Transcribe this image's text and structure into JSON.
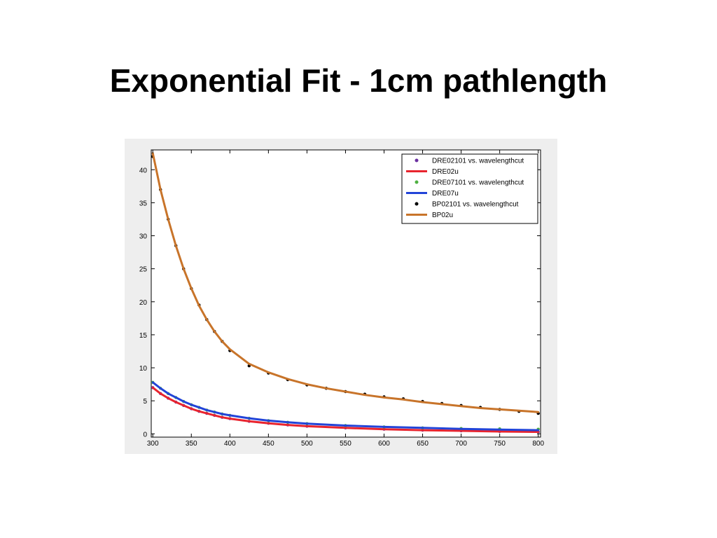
{
  "title": "Exponential Fit - 1cm pathlength",
  "colors": {
    "figure_bg": "#eeeeee",
    "axes_bg": "#ffffff",
    "DRE02101_points": "#6a2fa0",
    "DRE02u": "#e8242e",
    "DRE07101_points": "#4fb040",
    "DRE07u": "#2244d8",
    "BP02101_points": "#000000",
    "BP02u": "#c8742a"
  },
  "chart_data": {
    "type": "scatter",
    "title": "",
    "xlabel": "",
    "ylabel": "",
    "xlim": [
      298,
      803
    ],
    "ylim": [
      -0.5,
      43
    ],
    "xticks": [
      300,
      350,
      400,
      450,
      500,
      550,
      600,
      650,
      700,
      750,
      800
    ],
    "yticks": [
      0,
      5,
      10,
      15,
      20,
      25,
      30,
      35,
      40
    ],
    "legend_position": "top-right",
    "grid": false,
    "series": [
      {
        "name": "DRE02101 vs. wavelengthcut",
        "kind": "points",
        "color_key": "DRE02101_points",
        "x": [
          300,
          310,
          320,
          330,
          340,
          350,
          360,
          370,
          380,
          390,
          400,
          425,
          450,
          475,
          500,
          550,
          600,
          650,
          700,
          750,
          800
        ],
        "y": [
          7.0,
          6.1,
          5.4,
          4.8,
          4.3,
          3.8,
          3.4,
          3.1,
          2.8,
          2.5,
          2.3,
          1.9,
          1.6,
          1.35,
          1.15,
          0.9,
          0.7,
          0.55,
          0.45,
          0.35,
          0.3
        ]
      },
      {
        "name": "DRE02u",
        "kind": "line",
        "color_key": "DRE02u",
        "x": [
          300,
          310,
          320,
          330,
          340,
          350,
          360,
          370,
          380,
          390,
          400,
          425,
          450,
          475,
          500,
          550,
          600,
          650,
          700,
          750,
          800
        ],
        "y": [
          7.0,
          6.1,
          5.4,
          4.8,
          4.3,
          3.8,
          3.4,
          3.1,
          2.8,
          2.5,
          2.3,
          1.9,
          1.6,
          1.35,
          1.15,
          0.9,
          0.7,
          0.55,
          0.45,
          0.35,
          0.3
        ]
      },
      {
        "name": "DRE07101 vs. wavelengthcut",
        "kind": "points",
        "color_key": "DRE07101_points",
        "x": [
          300,
          310,
          320,
          330,
          340,
          350,
          360,
          370,
          380,
          390,
          400,
          425,
          450,
          475,
          500,
          550,
          600,
          650,
          700,
          750,
          800
        ],
        "y": [
          7.8,
          6.9,
          6.1,
          5.5,
          4.9,
          4.4,
          4.0,
          3.6,
          3.3,
          3.0,
          2.8,
          2.35,
          2.0,
          1.75,
          1.55,
          1.25,
          1.05,
          0.9,
          0.8,
          0.75,
          0.7
        ]
      },
      {
        "name": "DRE07u",
        "kind": "line",
        "color_key": "DRE07u",
        "x": [
          300,
          310,
          320,
          330,
          340,
          350,
          360,
          370,
          380,
          390,
          400,
          425,
          450,
          475,
          500,
          550,
          600,
          650,
          700,
          750,
          800
        ],
        "y": [
          7.8,
          6.9,
          6.1,
          5.5,
          4.9,
          4.4,
          4.0,
          3.6,
          3.3,
          3.0,
          2.8,
          2.35,
          2.0,
          1.75,
          1.55,
          1.25,
          1.05,
          0.9,
          0.75,
          0.65,
          0.55
        ]
      },
      {
        "name": "BP02101 vs. wavelengthcut",
        "kind": "points",
        "color_key": "BP02101_points",
        "x": [
          300,
          310,
          320,
          330,
          340,
          350,
          360,
          370,
          380,
          390,
          400,
          425,
          450,
          475,
          500,
          525,
          550,
          575,
          600,
          625,
          650,
          675,
          700,
          725,
          750,
          775,
          800
        ],
        "y": [
          42.0,
          37.0,
          32.5,
          28.5,
          25.0,
          22.0,
          19.5,
          17.3,
          15.5,
          14.0,
          12.6,
          10.3,
          9.2,
          8.2,
          7.4,
          6.9,
          6.4,
          6.0,
          5.6,
          5.3,
          4.9,
          4.6,
          4.3,
          4.0,
          3.7,
          3.4,
          3.1
        ]
      },
      {
        "name": "BP02u",
        "kind": "line",
        "color_key": "BP02u",
        "x": [
          300,
          310,
          320,
          330,
          340,
          350,
          360,
          370,
          380,
          390,
          400,
          425,
          450,
          475,
          500,
          525,
          550,
          575,
          600,
          625,
          650,
          675,
          700,
          725,
          750,
          775,
          800
        ],
        "y": [
          42.5,
          37.0,
          32.5,
          28.5,
          25.0,
          22.0,
          19.4,
          17.3,
          15.5,
          14.0,
          12.8,
          10.6,
          9.3,
          8.3,
          7.5,
          6.9,
          6.4,
          5.9,
          5.5,
          5.2,
          4.8,
          4.5,
          4.2,
          3.9,
          3.7,
          3.5,
          3.3
        ]
      }
    ]
  }
}
